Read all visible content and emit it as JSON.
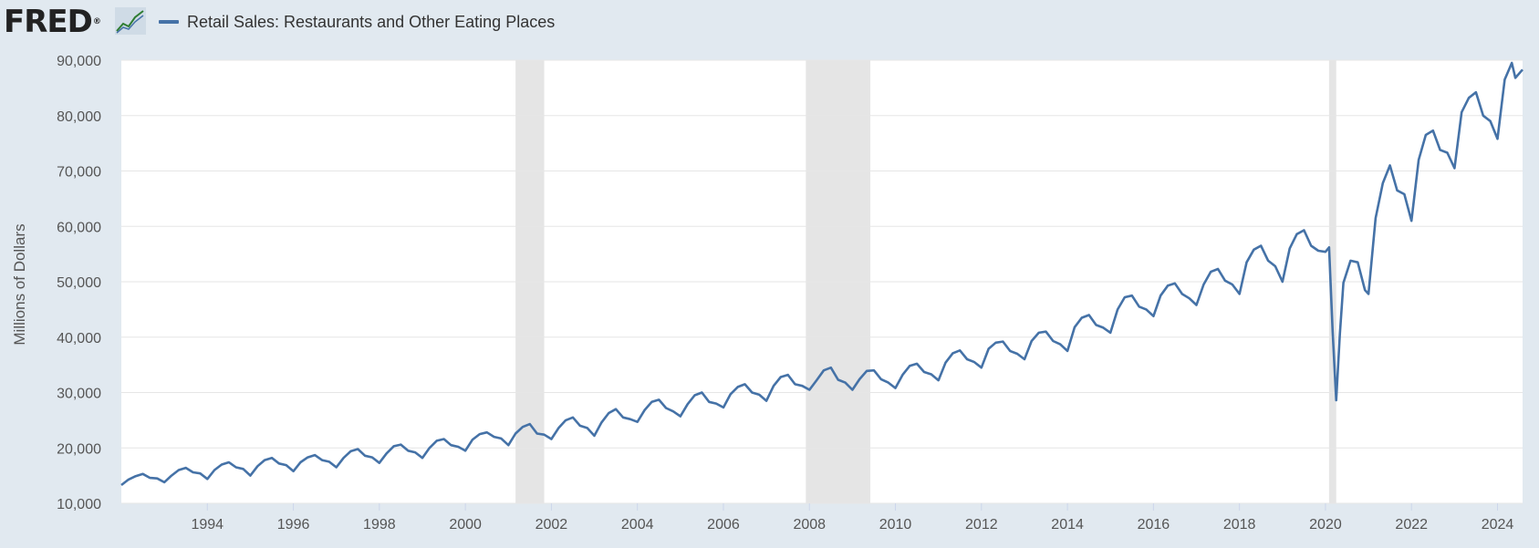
{
  "header": {
    "logo_text": "FRED",
    "logo_mark": "®",
    "logo_icon": "line-graph-icon"
  },
  "colors": {
    "series": "#4572a7",
    "background": "#e1e9f0",
    "plot_background": "#ffffff",
    "recession": "#e5e5e5",
    "grid": "#e6e6e6"
  },
  "chart_data": {
    "type": "line",
    "title": "",
    "xlabel": "",
    "ylabel": "Millions of Dollars",
    "ylim": [
      10000,
      90000
    ],
    "xlim": [
      "1992-01",
      "2024-08"
    ],
    "grid": "horizontal",
    "legend": "top-left",
    "x_tick_labels": [
      "1994",
      "1996",
      "1998",
      "2000",
      "2002",
      "2004",
      "2006",
      "2008",
      "2010",
      "2012",
      "2014",
      "2016",
      "2018",
      "2020",
      "2022",
      "2024"
    ],
    "y_tick_labels": [
      "10,000",
      "20,000",
      "30,000",
      "40,000",
      "50,000",
      "60,000",
      "70,000",
      "80,000",
      "90,000"
    ],
    "y_ticks": [
      10000,
      20000,
      30000,
      40000,
      50000,
      60000,
      70000,
      80000,
      90000
    ],
    "recessions": [
      {
        "start": "2001-03",
        "end": "2001-11"
      },
      {
        "start": "2007-12",
        "end": "2009-06"
      },
      {
        "start": "2020-02",
        "end": "2020-04"
      }
    ],
    "series": [
      {
        "name": "Retail Sales: Restaurants and Other Eating Places",
        "points": [
          [
            "1992-01",
            13300
          ],
          [
            "1992-03",
            14300
          ],
          [
            "1992-05",
            14900
          ],
          [
            "1992-07",
            15300
          ],
          [
            "1992-09",
            14600
          ],
          [
            "1992-11",
            14500
          ],
          [
            "1993-01",
            13800
          ],
          [
            "1993-03",
            15000
          ],
          [
            "1993-05",
            16000
          ],
          [
            "1993-07",
            16400
          ],
          [
            "1993-09",
            15600
          ],
          [
            "1993-11",
            15400
          ],
          [
            "1994-01",
            14400
          ],
          [
            "1994-03",
            16000
          ],
          [
            "1994-05",
            17000
          ],
          [
            "1994-07",
            17400
          ],
          [
            "1994-09",
            16500
          ],
          [
            "1994-11",
            16200
          ],
          [
            "1995-01",
            15000
          ],
          [
            "1995-03",
            16700
          ],
          [
            "1995-05",
            17800
          ],
          [
            "1995-07",
            18200
          ],
          [
            "1995-09",
            17200
          ],
          [
            "1995-11",
            16900
          ],
          [
            "1996-01",
            15800
          ],
          [
            "1996-03",
            17400
          ],
          [
            "1996-05",
            18300
          ],
          [
            "1996-07",
            18700
          ],
          [
            "1996-09",
            17800
          ],
          [
            "1996-11",
            17500
          ],
          [
            "1997-01",
            16500
          ],
          [
            "1997-03",
            18200
          ],
          [
            "1997-05",
            19400
          ],
          [
            "1997-07",
            19800
          ],
          [
            "1997-09",
            18600
          ],
          [
            "1997-11",
            18300
          ],
          [
            "1998-01",
            17300
          ],
          [
            "1998-03",
            19000
          ],
          [
            "1998-05",
            20300
          ],
          [
            "1998-07",
            20600
          ],
          [
            "1998-09",
            19500
          ],
          [
            "1998-11",
            19200
          ],
          [
            "1999-01",
            18200
          ],
          [
            "1999-03",
            20000
          ],
          [
            "1999-05",
            21300
          ],
          [
            "1999-07",
            21600
          ],
          [
            "1999-09",
            20500
          ],
          [
            "1999-11",
            20200
          ],
          [
            "2000-01",
            19500
          ],
          [
            "2000-03",
            21500
          ],
          [
            "2000-05",
            22500
          ],
          [
            "2000-07",
            22800
          ],
          [
            "2000-09",
            22000
          ],
          [
            "2000-11",
            21700
          ],
          [
            "2001-01",
            20500
          ],
          [
            "2001-03",
            22600
          ],
          [
            "2001-05",
            23800
          ],
          [
            "2001-07",
            24300
          ],
          [
            "2001-09",
            22600
          ],
          [
            "2001-11",
            22400
          ],
          [
            "2002-01",
            21600
          ],
          [
            "2002-03",
            23600
          ],
          [
            "2002-05",
            25000
          ],
          [
            "2002-07",
            25500
          ],
          [
            "2002-09",
            24000
          ],
          [
            "2002-11",
            23600
          ],
          [
            "2003-01",
            22200
          ],
          [
            "2003-03",
            24600
          ],
          [
            "2003-05",
            26300
          ],
          [
            "2003-07",
            27000
          ],
          [
            "2003-09",
            25500
          ],
          [
            "2003-11",
            25200
          ],
          [
            "2004-01",
            24700
          ],
          [
            "2004-03",
            26800
          ],
          [
            "2004-05",
            28300
          ],
          [
            "2004-07",
            28700
          ],
          [
            "2004-09",
            27200
          ],
          [
            "2004-11",
            26600
          ],
          [
            "2005-01",
            25700
          ],
          [
            "2005-03",
            27900
          ],
          [
            "2005-05",
            29500
          ],
          [
            "2005-07",
            30000
          ],
          [
            "2005-09",
            28300
          ],
          [
            "2005-11",
            28000
          ],
          [
            "2006-01",
            27300
          ],
          [
            "2006-03",
            29700
          ],
          [
            "2006-05",
            31000
          ],
          [
            "2006-07",
            31500
          ],
          [
            "2006-09",
            30000
          ],
          [
            "2006-11",
            29600
          ],
          [
            "2007-01",
            28500
          ],
          [
            "2007-03",
            31200
          ],
          [
            "2007-05",
            32800
          ],
          [
            "2007-07",
            33200
          ],
          [
            "2007-09",
            31500
          ],
          [
            "2007-11",
            31200
          ],
          [
            "2008-01",
            30500
          ],
          [
            "2008-03",
            32200
          ],
          [
            "2008-05",
            34000
          ],
          [
            "2008-07",
            34500
          ],
          [
            "2008-09",
            32300
          ],
          [
            "2008-11",
            31800
          ],
          [
            "2009-01",
            30500
          ],
          [
            "2009-03",
            32400
          ],
          [
            "2009-05",
            33900
          ],
          [
            "2009-07",
            34000
          ],
          [
            "2009-09",
            32400
          ],
          [
            "2009-11",
            31800
          ],
          [
            "2010-01",
            30800
          ],
          [
            "2010-03",
            33200
          ],
          [
            "2010-05",
            34800
          ],
          [
            "2010-07",
            35200
          ],
          [
            "2010-09",
            33700
          ],
          [
            "2010-11",
            33300
          ],
          [
            "2011-01",
            32200
          ],
          [
            "2011-03",
            35400
          ],
          [
            "2011-05",
            37100
          ],
          [
            "2011-07",
            37600
          ],
          [
            "2011-09",
            36000
          ],
          [
            "2011-11",
            35500
          ],
          [
            "2012-01",
            34500
          ],
          [
            "2012-03",
            37900
          ],
          [
            "2012-05",
            39000
          ],
          [
            "2012-07",
            39200
          ],
          [
            "2012-09",
            37500
          ],
          [
            "2012-11",
            37000
          ],
          [
            "2013-01",
            36000
          ],
          [
            "2013-03",
            39300
          ],
          [
            "2013-05",
            40800
          ],
          [
            "2013-07",
            41000
          ],
          [
            "2013-09",
            39300
          ],
          [
            "2013-11",
            38700
          ],
          [
            "2014-01",
            37500
          ],
          [
            "2014-03",
            41800
          ],
          [
            "2014-05",
            43500
          ],
          [
            "2014-07",
            44000
          ],
          [
            "2014-09",
            42200
          ],
          [
            "2014-11",
            41700
          ],
          [
            "2015-01",
            40800
          ],
          [
            "2015-03",
            45000
          ],
          [
            "2015-05",
            47200
          ],
          [
            "2015-07",
            47500
          ],
          [
            "2015-09",
            45500
          ],
          [
            "2015-11",
            45000
          ],
          [
            "2016-01",
            43800
          ],
          [
            "2016-03",
            47500
          ],
          [
            "2016-05",
            49300
          ],
          [
            "2016-07",
            49700
          ],
          [
            "2016-09",
            47800
          ],
          [
            "2016-11",
            47000
          ],
          [
            "2017-01",
            45800
          ],
          [
            "2017-03",
            49500
          ],
          [
            "2017-05",
            51800
          ],
          [
            "2017-07",
            52300
          ],
          [
            "2017-09",
            50200
          ],
          [
            "2017-11",
            49500
          ],
          [
            "2018-01",
            47800
          ],
          [
            "2018-03",
            53500
          ],
          [
            "2018-05",
            55800
          ],
          [
            "2018-07",
            56500
          ],
          [
            "2018-09",
            53800
          ],
          [
            "2018-11",
            52800
          ],
          [
            "2019-01",
            50000
          ],
          [
            "2019-03",
            56000
          ],
          [
            "2019-05",
            58600
          ],
          [
            "2019-07",
            59300
          ],
          [
            "2019-09",
            56500
          ],
          [
            "2019-11",
            55600
          ],
          [
            "2020-01",
            55400
          ],
          [
            "2020-02",
            56200
          ],
          [
            "2020-03",
            41000
          ],
          [
            "2020-04",
            28600
          ],
          [
            "2020-05",
            40500
          ],
          [
            "2020-06",
            49800
          ],
          [
            "2020-08",
            53800
          ],
          [
            "2020-10",
            53500
          ],
          [
            "2020-12",
            48500
          ],
          [
            "2021-01",
            47800
          ],
          [
            "2021-03",
            61500
          ],
          [
            "2021-05",
            67800
          ],
          [
            "2021-07",
            71000
          ],
          [
            "2021-09",
            66500
          ],
          [
            "2021-11",
            65800
          ],
          [
            "2022-01",
            61000
          ],
          [
            "2022-03",
            72000
          ],
          [
            "2022-05",
            76500
          ],
          [
            "2022-07",
            77300
          ],
          [
            "2022-09",
            73800
          ],
          [
            "2022-11",
            73300
          ],
          [
            "2023-01",
            70500
          ],
          [
            "2023-03",
            80600
          ],
          [
            "2023-05",
            83200
          ],
          [
            "2023-07",
            84200
          ],
          [
            "2023-09",
            80000
          ],
          [
            "2023-11",
            79000
          ],
          [
            "2024-01",
            75800
          ],
          [
            "2024-03",
            86500
          ],
          [
            "2024-05",
            89500
          ],
          [
            "2024-06",
            86800
          ],
          [
            "2024-08",
            88300
          ]
        ]
      }
    ]
  }
}
